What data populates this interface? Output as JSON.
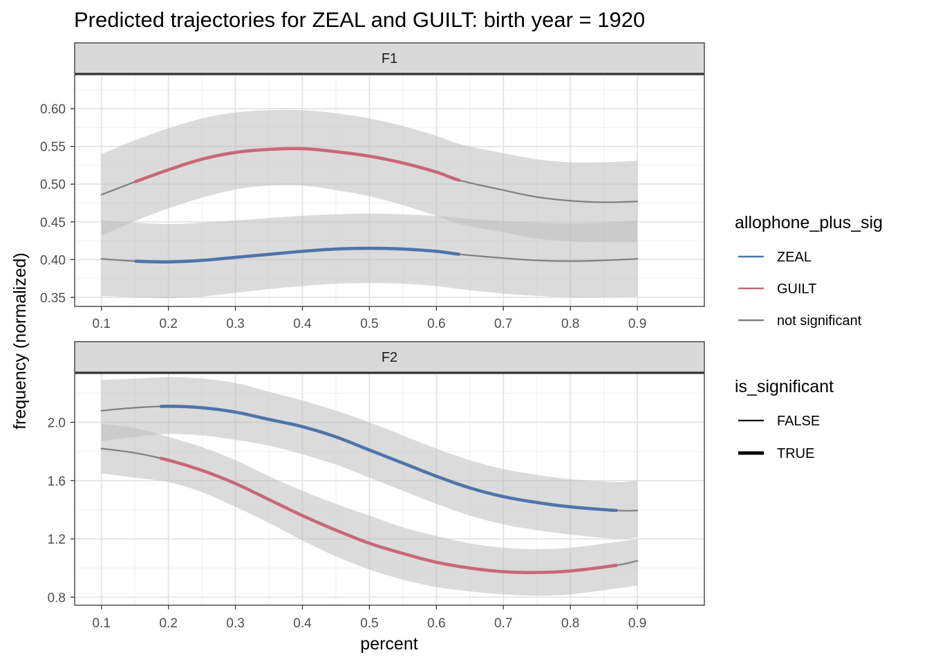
{
  "chart_data": {
    "type": "line",
    "title": "Predicted trajectories for ZEAL and GUILT: birth year = 1920",
    "xlabel": "percent",
    "ylabel": "frequency (normalized)",
    "x_ticks": [
      "0.1",
      "0.2",
      "0.3",
      "0.4",
      "0.5",
      "0.6",
      "0.7",
      "0.8",
      "0.9"
    ],
    "grid": true,
    "legend_position": "right",
    "colors": {
      "ZEAL": "#4e74a8",
      "GUILT": "#c8677a",
      "not significant": "#7f7f7f",
      "ribbon": "#bdbdbd",
      "strip": "#d9d9d9"
    },
    "legends": [
      {
        "title": "allophone_plus_sig",
        "entries": [
          {
            "label": "ZEAL",
            "color": "#4e74a8"
          },
          {
            "label": "GUILT",
            "color": "#c8677a"
          },
          {
            "label": "not significant",
            "color": "#7f7f7f"
          }
        ]
      },
      {
        "title": "is_significant",
        "entries": [
          {
            "label": "FALSE",
            "weight": "thin"
          },
          {
            "label": "TRUE",
            "weight": "thick"
          }
        ]
      }
    ],
    "panels": [
      {
        "strip": "F1",
        "xlim": [
          0.06,
          1.0
        ],
        "ylim": [
          0.338,
          0.645
        ],
        "y_ticks": [
          "0.35",
          "0.40",
          "0.45",
          "0.50",
          "0.55",
          "0.60"
        ],
        "series": [
          {
            "name": "ZEAL",
            "sig_range": [
              0.15,
              0.635
            ],
            "x": [
              0.1,
              0.15,
              0.2,
              0.25,
              0.3,
              0.35,
              0.4,
              0.45,
              0.5,
              0.55,
              0.6,
              0.635,
              0.7,
              0.75,
              0.8,
              0.85,
              0.9
            ],
            "y": [
              0.401,
              0.398,
              0.397,
              0.399,
              0.403,
              0.407,
              0.411,
              0.414,
              0.415,
              0.414,
              0.411,
              0.407,
              0.402,
              0.399,
              0.398,
              0.399,
              0.401
            ],
            "lower": [
              0.352,
              0.35,
              0.349,
              0.351,
              0.356,
              0.361,
              0.365,
              0.368,
              0.369,
              0.368,
              0.365,
              0.361,
              0.355,
              0.352,
              0.35,
              0.35,
              0.351
            ],
            "upper": [
              0.452,
              0.449,
              0.447,
              0.449,
              0.452,
              0.455,
              0.458,
              0.46,
              0.461,
              0.46,
              0.458,
              0.455,
              0.451,
              0.449,
              0.448,
              0.449,
              0.452
            ]
          },
          {
            "name": "GUILT",
            "sig_range": [
              0.15,
              0.635
            ],
            "x": [
              0.1,
              0.15,
              0.2,
              0.25,
              0.3,
              0.35,
              0.4,
              0.45,
              0.5,
              0.55,
              0.6,
              0.635,
              0.7,
              0.75,
              0.8,
              0.85,
              0.9
            ],
            "y": [
              0.486,
              0.503,
              0.519,
              0.533,
              0.542,
              0.546,
              0.547,
              0.543,
              0.537,
              0.528,
              0.516,
              0.505,
              0.492,
              0.483,
              0.478,
              0.476,
              0.477
            ],
            "lower": [
              0.432,
              0.451,
              0.468,
              0.482,
              0.493,
              0.498,
              0.498,
              0.492,
              0.484,
              0.472,
              0.458,
              0.447,
              0.436,
              0.428,
              0.424,
              0.423,
              0.423
            ],
            "upper": [
              0.54,
              0.558,
              0.574,
              0.587,
              0.595,
              0.598,
              0.598,
              0.594,
              0.587,
              0.577,
              0.564,
              0.553,
              0.541,
              0.533,
              0.529,
              0.529,
              0.531
            ]
          }
        ]
      },
      {
        "strip": "F2",
        "xlim": [
          0.06,
          1.0
        ],
        "ylim": [
          0.745,
          2.335
        ],
        "y_ticks": [
          "0.8",
          "1.2",
          "1.6",
          "2.0"
        ],
        "series": [
          {
            "name": "ZEAL",
            "sig_range": [
              0.185,
              0.87
            ],
            "x": [
              0.1,
              0.15,
              0.2,
              0.25,
              0.3,
              0.35,
              0.4,
              0.45,
              0.5,
              0.55,
              0.6,
              0.65,
              0.7,
              0.75,
              0.8,
              0.87,
              0.9
            ],
            "y": [
              2.08,
              2.1,
              2.11,
              2.1,
              2.07,
              2.02,
              1.97,
              1.9,
              1.81,
              1.72,
              1.63,
              1.55,
              1.49,
              1.45,
              1.42,
              1.395,
              1.395
            ],
            "lower": [
              1.87,
              1.9,
              1.92,
              1.91,
              1.88,
              1.84,
              1.78,
              1.71,
              1.62,
              1.53,
              1.44,
              1.36,
              1.3,
              1.26,
              1.23,
              1.2,
              1.21
            ],
            "upper": [
              2.29,
              2.3,
              2.31,
              2.3,
              2.27,
              2.21,
              2.15,
              2.08,
              2.0,
              1.91,
              1.82,
              1.74,
              1.68,
              1.64,
              1.61,
              1.59,
              1.6
            ]
          },
          {
            "name": "GUILT",
            "sig_range": [
              0.185,
              0.87
            ],
            "x": [
              0.1,
              0.15,
              0.2,
              0.25,
              0.3,
              0.35,
              0.4,
              0.45,
              0.5,
              0.55,
              0.6,
              0.65,
              0.7,
              0.75,
              0.8,
              0.87,
              0.9
            ],
            "y": [
              1.82,
              1.79,
              1.74,
              1.67,
              1.58,
              1.47,
              1.36,
              1.26,
              1.17,
              1.1,
              1.04,
              1.0,
              0.975,
              0.97,
              0.98,
              1.02,
              1.05
            ],
            "lower": [
              1.65,
              1.62,
              1.59,
              1.52,
              1.42,
              1.31,
              1.19,
              1.08,
              0.99,
              0.92,
              0.87,
              0.84,
              0.82,
              0.81,
              0.82,
              0.86,
              0.88
            ],
            "upper": [
              1.99,
              1.96,
              1.9,
              1.83,
              1.74,
              1.63,
              1.53,
              1.44,
              1.36,
              1.28,
              1.22,
              1.17,
              1.14,
              1.13,
              1.14,
              1.18,
              1.2
            ]
          }
        ]
      }
    ]
  }
}
